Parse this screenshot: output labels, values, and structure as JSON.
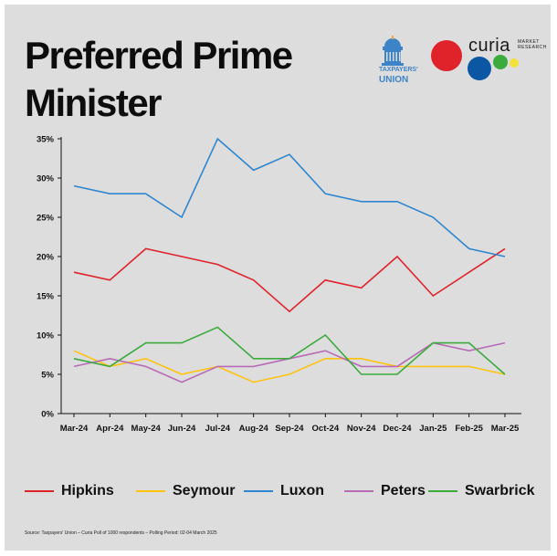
{
  "title": "Preferred Prime Minister",
  "logos": {
    "taxpayers_union": {
      "line1": "TAXPAYERS'",
      "line2": "UNION"
    },
    "curia": {
      "word": "curia",
      "tag_line1": "MARKET",
      "tag_line2": "RESEARCH"
    }
  },
  "source": "Source: Taxpayers' Union – Curia Poll of 1000 respondents – Polling Period: 02-04 March 2025",
  "chart_data": {
    "type": "line",
    "title": "Preferred Prime Minister",
    "xlabel": "",
    "ylabel": "",
    "categories": [
      "Mar-24",
      "Apr-24",
      "May-24",
      "Jun-24",
      "Jul-24",
      "Aug-24",
      "Sep-24",
      "Oct-24",
      "Nov-24",
      "Dec-24",
      "Jan-25",
      "Feb-25",
      "Mar-25"
    ],
    "ylim": [
      0,
      35
    ],
    "yticks": [
      0,
      5,
      10,
      15,
      20,
      25,
      30,
      35
    ],
    "ytick_labels": [
      "0%",
      "5%",
      "10%",
      "15%",
      "20%",
      "25%",
      "30%",
      "35%"
    ],
    "grid": false,
    "legend_position": "bottom",
    "series": [
      {
        "name": "Hipkins",
        "color": "#e0222b",
        "values": [
          18,
          17,
          21,
          20,
          19,
          17,
          13,
          17,
          16,
          20,
          15,
          18,
          21
        ]
      },
      {
        "name": "Seymour",
        "color": "#ffc20e",
        "values": [
          8,
          6,
          7,
          5,
          6,
          4,
          5,
          7,
          7,
          6,
          6,
          6,
          5
        ]
      },
      {
        "name": "Luxon",
        "color": "#2f86cf",
        "values": [
          29,
          28,
          28,
          25,
          35,
          31,
          33,
          28,
          27,
          27,
          25,
          21,
          20
        ]
      },
      {
        "name": "Peters",
        "color": "#b76bb6",
        "values": [
          6,
          7,
          6,
          4,
          6,
          6,
          7,
          8,
          6,
          6,
          9,
          8,
          9
        ]
      },
      {
        "name": "Swarbrick",
        "color": "#3bab3e",
        "values": [
          7,
          6,
          9,
          9,
          11,
          7,
          7,
          10,
          5,
          5,
          9,
          9,
          5
        ]
      }
    ]
  }
}
